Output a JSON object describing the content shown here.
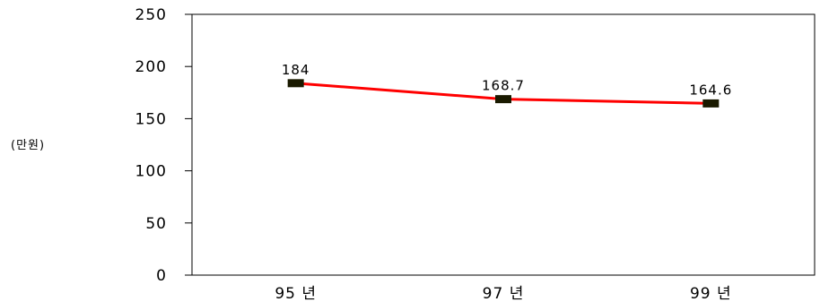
{
  "chart_data": {
    "type": "line",
    "categories": [
      "95 년",
      "97 년",
      "99 년"
    ],
    "series": [
      {
        "values": [
          184,
          168.7,
          164.6
        ],
        "labels": [
          "184",
          "168.7",
          "164.6"
        ]
      }
    ],
    "ylabel": "(만원)",
    "ylim": [
      0,
      250
    ],
    "yticks": [
      "0",
      "50",
      "100",
      "150",
      "200",
      "250"
    ],
    "line_color": "#ff0000",
    "marker_color": "#1a1a00",
    "grid": false
  }
}
